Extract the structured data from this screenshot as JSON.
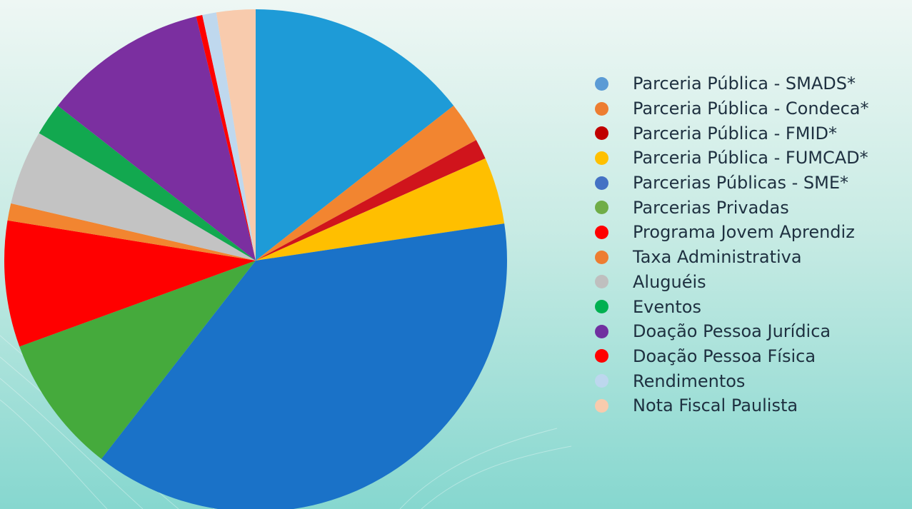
{
  "chart_data": {
    "type": "pie",
    "title": "",
    "legend_position": "right",
    "slices": [
      {
        "label": "Parceria Pública - SMADS*",
        "value": 14.4,
        "color": "#1e9bd7",
        "legend_color": "#5b9bd5"
      },
      {
        "label": "Parceria Pública - Condeca*",
        "value": 2.6,
        "color": "#f28530",
        "legend_color": "#ed7d31"
      },
      {
        "label": "Parceria Pública - FMID*",
        "value": 1.3,
        "color": "#d0141c",
        "legend_color": "#c00000"
      },
      {
        "label": "Parceria Pública - FUMCAD*",
        "value": 4.3,
        "color": "#ffbf00",
        "legend_color": "#ffc000"
      },
      {
        "label": "Parcerias Públicas - SME*",
        "value": 37.8,
        "color": "#1a72c8",
        "legend_color": "#4472c4"
      },
      {
        "label": "Parcerias Privadas",
        "value": 8.9,
        "color": "#45aa3c",
        "legend_color": "#70ad47"
      },
      {
        "label": "Programa Jovem Aprendiz",
        "value": 8.1,
        "color": "#ff0000",
        "legend_color": "#ff0000"
      },
      {
        "label": "Taxa Administrativa",
        "value": 1.1,
        "color": "#f28530",
        "legend_color": "#ed7d31"
      },
      {
        "label": "Aluguéis",
        "value": 4.8,
        "color": "#c3c3c3",
        "legend_color": "#bfbfbf"
      },
      {
        "label": "Eventos",
        "value": 2.1,
        "color": "#12a84f",
        "legend_color": "#00b050"
      },
      {
        "label": "Doação Pessoa Jurídica",
        "value": 10.6,
        "color": "#7b2fa0",
        "legend_color": "#7030a0"
      },
      {
        "label": "Doação Pessoa Física",
        "value": 0.4,
        "color": "#ff0000",
        "legend_color": "#ff0000"
      },
      {
        "label": "Rendimentos",
        "value": 0.9,
        "color": "#bfd8ee",
        "legend_color": "#bdd7ee"
      },
      {
        "label": "Nota Fiscal Paulista",
        "value": 2.5,
        "color": "#f8cbad",
        "legend_color": "#f8cbad"
      }
    ]
  }
}
